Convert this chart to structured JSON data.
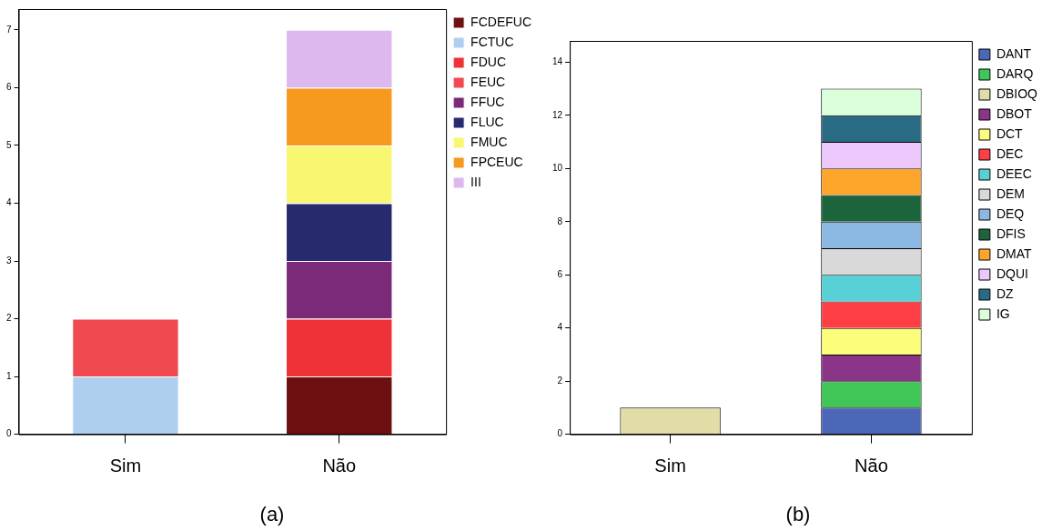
{
  "chart_data": [
    {
      "type": "bar",
      "title": "(a)",
      "categories": [
        "Sim",
        "Não"
      ],
      "stacked": true,
      "legend": "right",
      "ylim": [
        0,
        7.36
      ],
      "yticks": [
        0,
        1,
        2,
        3,
        4,
        5,
        6,
        7
      ],
      "grid": false,
      "series": [
        {
          "name": "FCDEFUC",
          "color": "#6e0f12",
          "values": [
            0,
            1
          ]
        },
        {
          "name": "FCTUC",
          "color": "#aed0ee",
          "values": [
            1,
            0
          ]
        },
        {
          "name": "FDUC",
          "color": "#ef3237",
          "values": [
            0,
            1
          ]
        },
        {
          "name": "FEUC",
          "color": "#f04a50",
          "values": [
            1,
            0
          ]
        },
        {
          "name": "FFUC",
          "color": "#7b2a7a",
          "values": [
            0,
            1
          ]
        },
        {
          "name": "FLUC",
          "color": "#282a6f",
          "values": [
            0,
            1
          ]
        },
        {
          "name": "FMUC",
          "color": "#f9f672",
          "values": [
            0,
            1
          ]
        },
        {
          "name": "FPCEUC",
          "color": "#f7981f",
          "values": [
            0,
            1
          ]
        },
        {
          "name": "III",
          "color": "#ddb8ef",
          "values": [
            0,
            1
          ]
        }
      ]
    },
    {
      "type": "bar",
      "title": "(b)",
      "categories": [
        "Sim",
        "Não"
      ],
      "stacked": true,
      "legend": "right",
      "ylim": [
        0,
        14.8
      ],
      "yticks": [
        0,
        2,
        4,
        6,
        8,
        10,
        12,
        14
      ],
      "grid": false,
      "series": [
        {
          "name": "DANT",
          "color": "#4c66b8",
          "values": [
            0,
            1
          ]
        },
        {
          "name": "DARQ",
          "color": "#3fc656",
          "values": [
            0,
            1
          ]
        },
        {
          "name": "DBIOQ",
          "color": "#e2dda6",
          "values": [
            1,
            0
          ]
        },
        {
          "name": "DBOT",
          "color": "#8b3589",
          "values": [
            0,
            1
          ]
        },
        {
          "name": "DCT",
          "color": "#fdfd7c",
          "values": [
            0,
            1
          ]
        },
        {
          "name": "DEC",
          "color": "#fd3f45",
          "values": [
            0,
            1
          ]
        },
        {
          "name": "DEEC",
          "color": "#58d1d6",
          "values": [
            0,
            1
          ]
        },
        {
          "name": "DEM",
          "color": "#d9d9d9",
          "values": [
            0,
            1
          ]
        },
        {
          "name": "DEQ",
          "color": "#8cb8e4",
          "values": [
            0,
            1
          ]
        },
        {
          "name": "DFIS",
          "color": "#1b643c",
          "values": [
            0,
            1
          ]
        },
        {
          "name": "DMAT",
          "color": "#fea52b",
          "values": [
            0,
            1
          ]
        },
        {
          "name": "DQUI",
          "color": "#ecc8fd",
          "values": [
            0,
            1
          ]
        },
        {
          "name": "DZ",
          "color": "#2a6b84",
          "values": [
            0,
            1
          ]
        },
        {
          "name": "IG",
          "color": "#dbfedb",
          "values": [
            0,
            1
          ]
        }
      ]
    }
  ]
}
